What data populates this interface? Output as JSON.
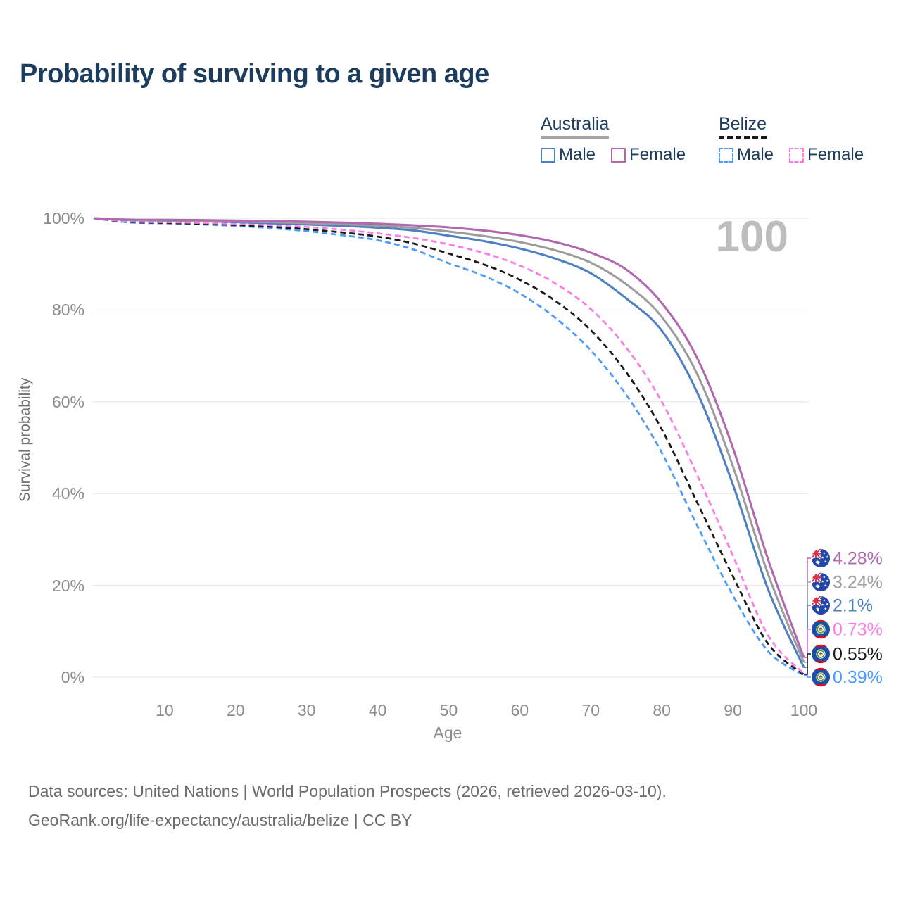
{
  "title": "Probability of surviving to a given age",
  "watermark_age": "100",
  "legend": {
    "australia": {
      "label": "Australia",
      "male": "Male",
      "female": "Female"
    },
    "belize": {
      "label": "Belize",
      "male": "Male",
      "female": "Female"
    }
  },
  "colors": {
    "title_text": "#1d3d5e",
    "legend_text": "#1d3d5e",
    "australia_underline": "#a3a3a3",
    "belize_underline": "#1a1a1a",
    "grid": "#e6e6e6",
    "tick_text": "#8c8c8c",
    "axis_text": "#6f6f6f",
    "watermark": "#bdbdbd",
    "footer_text": "#6c6c6c"
  },
  "chart_data": {
    "type": "line",
    "title": "Probability of surviving to a given age",
    "xlabel": "Age",
    "ylabel": "Survival probability",
    "xlim": [
      0,
      100
    ],
    "ylim": [
      0,
      100
    ],
    "x_ticks": [
      10,
      20,
      30,
      40,
      50,
      60,
      70,
      80,
      90,
      100
    ],
    "y_ticks": [
      0,
      20,
      40,
      60,
      80,
      100
    ],
    "y_tick_suffix": "%",
    "grid": "horizontal",
    "legend_position": "top-right",
    "x": [
      0,
      5,
      10,
      15,
      20,
      25,
      30,
      35,
      40,
      45,
      50,
      55,
      60,
      65,
      70,
      75,
      80,
      85,
      90,
      95,
      100
    ],
    "series": [
      {
        "name": "Belize Male",
        "country": "belize",
        "sex": "male",
        "color": "#4c9bfd",
        "dashed": true,
        "end_label": "0.39%",
        "values": [
          100,
          99.1,
          98.9,
          98.65,
          98.35,
          97.85,
          97.2,
          96.3,
          95.2,
          93.2,
          90.2,
          87.4,
          83.6,
          78.3,
          71.2,
          61.5,
          48.9,
          33.0,
          17.8,
          5.6,
          0.39
        ]
      },
      {
        "name": "Belize Total",
        "country": "belize",
        "sex": "total",
        "color": "#1a1a1a",
        "dashed": true,
        "end_label": "0.55%",
        "values": [
          100,
          99.2,
          99.0,
          98.8,
          98.55,
          98.15,
          97.6,
          96.9,
          96.0,
          94.5,
          92.3,
          89.9,
          86.6,
          82.0,
          75.6,
          66.4,
          54.0,
          38.0,
          22.0,
          7.2,
          0.55
        ]
      },
      {
        "name": "Belize Female",
        "country": "belize",
        "sex": "female",
        "color": "#fc7ce8",
        "dashed": true,
        "end_label": "0.73%",
        "values": [
          100,
          99.3,
          99.15,
          99.0,
          98.8,
          98.5,
          98.1,
          97.5,
          96.7,
          95.7,
          94.3,
          92.4,
          89.7,
          85.8,
          80.2,
          71.8,
          60.0,
          44.0,
          26.5,
          9.0,
          0.73
        ]
      },
      {
        "name": "Australia Male",
        "country": "australia",
        "sex": "male",
        "color": "#4f81c2",
        "dashed": false,
        "end_label": "2.1%",
        "values": [
          100,
          99.6,
          99.5,
          99.35,
          99.15,
          98.9,
          98.65,
          98.35,
          97.95,
          97.35,
          96.2,
          95.0,
          93.4,
          91.2,
          88.0,
          82.5,
          75.5,
          62.0,
          42.0,
          19.0,
          2.1
        ]
      },
      {
        "name": "Australia Total",
        "country": "australia",
        "sex": "total",
        "color": "#9d9d9d",
        "dashed": false,
        "end_label": "3.24%",
        "values": [
          100,
          99.65,
          99.55,
          99.45,
          99.3,
          99.15,
          98.95,
          98.7,
          98.4,
          97.9,
          97.1,
          96.1,
          94.8,
          93.0,
          90.3,
          85.6,
          78.5,
          66.0,
          46.0,
          22.3,
          3.24
        ]
      },
      {
        "name": "Australia Female",
        "country": "australia",
        "sex": "female",
        "color": "#b168b0",
        "dashed": false,
        "end_label": "4.28%",
        "values": [
          100,
          99.7,
          99.65,
          99.6,
          99.5,
          99.4,
          99.25,
          99.05,
          98.8,
          98.45,
          98.0,
          97.3,
          96.3,
          94.8,
          92.5,
          88.8,
          81.5,
          69.5,
          50.0,
          25.5,
          4.28
        ]
      }
    ]
  },
  "end_labels": [
    {
      "text": "4.28%",
      "color": "#b168b0",
      "flag": "australia"
    },
    {
      "text": "3.24%",
      "color": "#9d9d9d",
      "flag": "australia"
    },
    {
      "text": "2.1%",
      "color": "#4f81c2",
      "flag": "australia"
    },
    {
      "text": "0.73%",
      "color": "#fc7ce8",
      "flag": "belize"
    },
    {
      "text": "0.55%",
      "color": "#1a1a1a",
      "flag": "belize"
    },
    {
      "text": "0.39%",
      "color": "#4c9bfd",
      "flag": "belize"
    }
  ],
  "footer": {
    "line1": "Data sources: United Nations | World Population Prospects (2026, retrieved 2026-03-10).",
    "line2": "GeoRank.org/life-expectancy/australia/belize | CC BY"
  }
}
